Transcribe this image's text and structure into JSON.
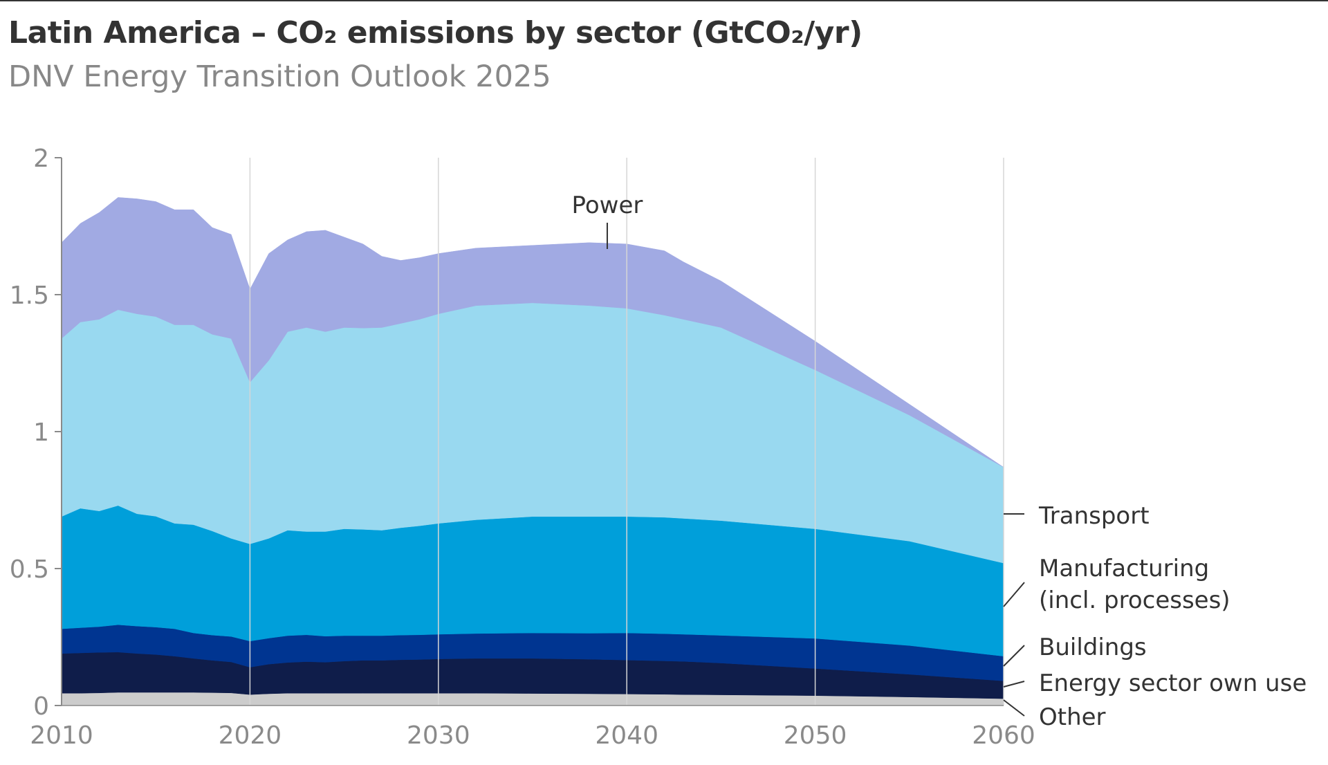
{
  "header": {
    "title": "Latin America – CO₂ emissions by sector (GtCO₂/yr)",
    "subtitle": "DNV Energy Transition Outlook 2025"
  },
  "chart_data": {
    "type": "area",
    "stacked": true,
    "title": "Latin America – CO₂ emissions by sector (GtCO₂/yr)",
    "subtitle": "DNV Energy Transition Outlook 2025",
    "xlabel": "",
    "ylabel": "GtCO₂/yr",
    "xlim": [
      2010,
      2060
    ],
    "ylim": [
      0,
      2
    ],
    "x_ticks": [
      2010,
      2020,
      2030,
      2040,
      2050,
      2060
    ],
    "x_tick_labels": [
      "2010",
      "2020",
      "2030",
      "2040",
      "2050",
      "2060"
    ],
    "y_ticks": [
      0,
      0.5,
      1,
      1.5,
      2
    ],
    "y_tick_labels": [
      "0",
      "0.5",
      "1",
      "1.5",
      "2"
    ],
    "grid": "vertical",
    "legend": "right (direct labels)",
    "x": [
      2010,
      2011,
      2012,
      2013,
      2014,
      2015,
      2016,
      2017,
      2018,
      2019,
      2020,
      2021,
      2022,
      2023,
      2024,
      2025,
      2026,
      2027,
      2028,
      2029,
      2030,
      2032,
      2035,
      2038,
      2040,
      2042,
      2043,
      2045,
      2050,
      2055,
      2060
    ],
    "series": [
      {
        "name": "Other",
        "color": "#cccccc",
        "values": [
          0.045,
          0.045,
          0.046,
          0.048,
          0.048,
          0.048,
          0.048,
          0.048,
          0.047,
          0.046,
          0.04,
          0.043,
          0.045,
          0.045,
          0.045,
          0.045,
          0.045,
          0.045,
          0.045,
          0.045,
          0.045,
          0.045,
          0.044,
          0.043,
          0.042,
          0.041,
          0.04,
          0.039,
          0.036,
          0.031,
          0.025
        ]
      },
      {
        "name": "Energy sector own use",
        "color": "#0f1d4a",
        "values": [
          0.145,
          0.147,
          0.148,
          0.147,
          0.142,
          0.138,
          0.132,
          0.124,
          0.118,
          0.113,
          0.1,
          0.108,
          0.112,
          0.115,
          0.113,
          0.117,
          0.12,
          0.12,
          0.122,
          0.123,
          0.125,
          0.127,
          0.128,
          0.126,
          0.124,
          0.122,
          0.121,
          0.116,
          0.099,
          0.083,
          0.065
        ]
      },
      {
        "name": "Buildings",
        "color": "#003591",
        "values": [
          0.09,
          0.092,
          0.094,
          0.1,
          0.1,
          0.1,
          0.1,
          0.093,
          0.092,
          0.093,
          0.095,
          0.095,
          0.098,
          0.098,
          0.095,
          0.093,
          0.09,
          0.09,
          0.09,
          0.09,
          0.09,
          0.091,
          0.093,
          0.095,
          0.099,
          0.099,
          0.099,
          0.101,
          0.11,
          0.105,
          0.09
        ]
      },
      {
        "name": "Manufacturing (incl. processes)",
        "color": "#009fda",
        "values": [
          0.41,
          0.436,
          0.422,
          0.435,
          0.41,
          0.405,
          0.385,
          0.395,
          0.38,
          0.358,
          0.355,
          0.364,
          0.385,
          0.377,
          0.382,
          0.39,
          0.388,
          0.385,
          0.392,
          0.398,
          0.405,
          0.415,
          0.425,
          0.426,
          0.425,
          0.425,
          0.423,
          0.419,
          0.4,
          0.381,
          0.34
        ]
      },
      {
        "name": "Transport",
        "color": "#99d9f0",
        "values": [
          0.65,
          0.68,
          0.7,
          0.715,
          0.73,
          0.729,
          0.725,
          0.73,
          0.718,
          0.73,
          0.59,
          0.65,
          0.725,
          0.745,
          0.73,
          0.735,
          0.735,
          0.74,
          0.746,
          0.754,
          0.765,
          0.782,
          0.78,
          0.77,
          0.76,
          0.738,
          0.727,
          0.705,
          0.58,
          0.46,
          0.35
        ]
      },
      {
        "name": "Power",
        "color": "#a1aae3",
        "values": [
          0.35,
          0.36,
          0.39,
          0.41,
          0.42,
          0.42,
          0.42,
          0.42,
          0.39,
          0.38,
          0.34,
          0.39,
          0.335,
          0.35,
          0.37,
          0.33,
          0.307,
          0.26,
          0.23,
          0.225,
          0.22,
          0.21,
          0.21,
          0.23,
          0.235,
          0.235,
          0.21,
          0.17,
          0.105,
          0.04,
          0.0
        ]
      }
    ],
    "annotations": [
      {
        "text": "Power",
        "near_x": 2039,
        "near_y": 1.65
      }
    ],
    "direct_labels": [
      "Transport",
      "Manufacturing",
      "(incl. processes)",
      "Buildings",
      "Energy sector own use",
      "Other"
    ]
  }
}
